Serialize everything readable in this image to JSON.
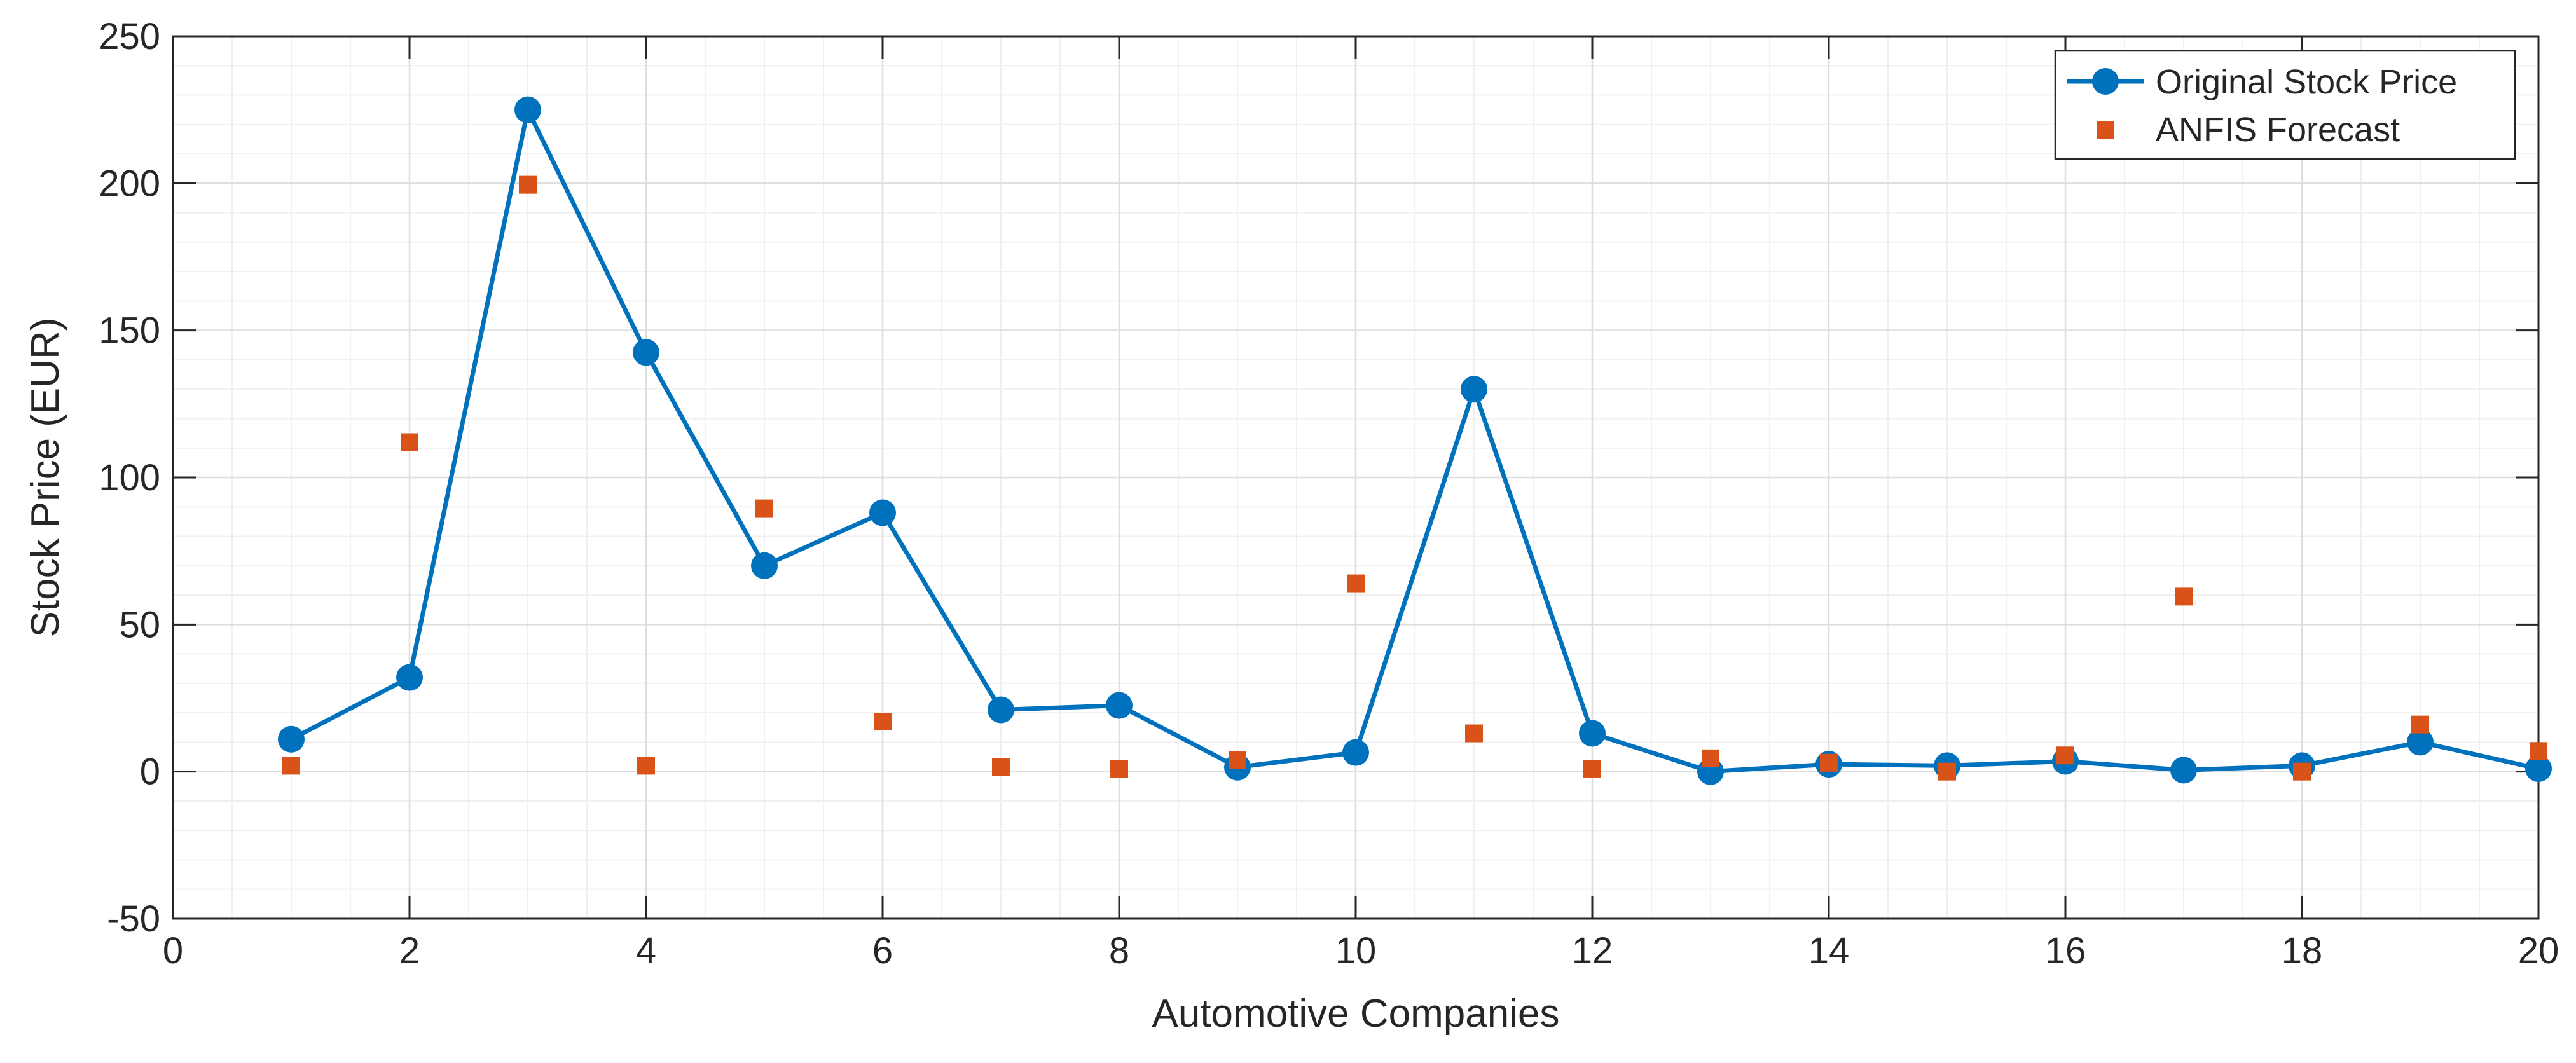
{
  "chart_data": {
    "type": "line",
    "title": "",
    "xlabel": "Automotive Companies",
    "ylabel": "Stock Price (EUR)",
    "xlim": [
      0,
      20
    ],
    "ylim": [
      -50,
      250
    ],
    "xticks": [
      0,
      2,
      4,
      6,
      8,
      10,
      12,
      14,
      16,
      18,
      20
    ],
    "yticks": [
      -50,
      0,
      50,
      100,
      150,
      200,
      250
    ],
    "grid": true,
    "minor_grid": true,
    "legend_position": "top-right",
    "series": [
      {
        "name": "Original Stock Price",
        "style": "line-with-circle-markers",
        "color": "#0072BD",
        "x": [
          1,
          2,
          3,
          4,
          5,
          6,
          7,
          8,
          9,
          10,
          11,
          12,
          13,
          14,
          15,
          16,
          17,
          18,
          19,
          20
        ],
        "y": [
          11,
          32,
          225,
          142.5,
          70,
          88,
          21,
          22.5,
          1.5,
          6.5,
          130,
          13,
          0,
          2.5,
          2,
          3.5,
          0.5,
          2,
          10,
          1
        ]
      },
      {
        "name": "ANFIS Forecast",
        "style": "square-markers",
        "color": "#D95319",
        "x": [
          1,
          2,
          3,
          4,
          5,
          6,
          7,
          8,
          9,
          10,
          11,
          12,
          13,
          14,
          15,
          16,
          17,
          18,
          19,
          20
        ],
        "y": [
          2,
          112,
          199.5,
          2,
          89.5,
          17,
          1.5,
          1,
          4,
          64,
          13,
          1,
          4.5,
          3,
          0,
          5.5,
          59.5,
          0,
          16,
          7
        ]
      }
    ]
  }
}
